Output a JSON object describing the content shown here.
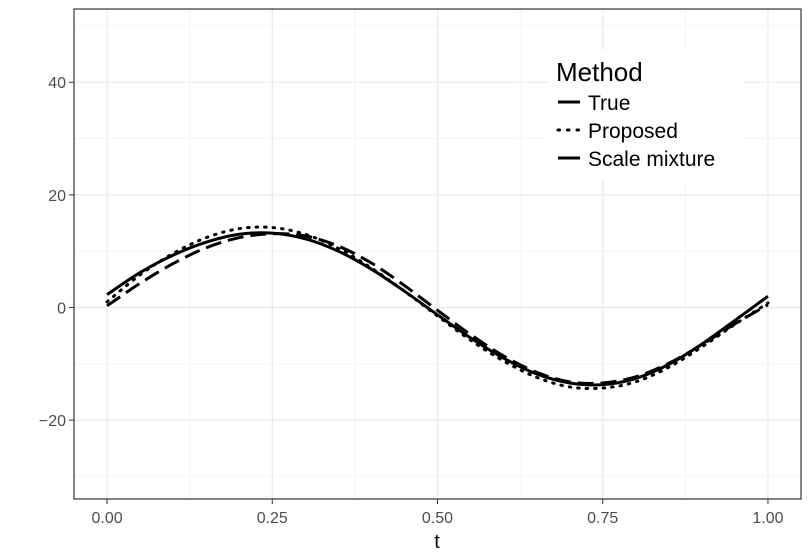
{
  "chart_data": {
    "type": "line",
    "title": "",
    "xlabel": "t",
    "ylabel": "",
    "xlim": [
      -0.05,
      1.05
    ],
    "ylim": [
      -34,
      53
    ],
    "x_ticks": [
      0,
      0.25,
      0.5,
      0.75,
      1
    ],
    "x_tick_labels": [
      "0.00",
      "0.25",
      "0.50",
      "0.75",
      "1.00"
    ],
    "y_ticks": [
      -20,
      0,
      20,
      40
    ],
    "y_tick_labels": [
      "−20",
      "0",
      "20",
      "40"
    ],
    "grid": true,
    "legend": {
      "title": "Method",
      "position": "top-right"
    },
    "x": [
      0,
      0.05,
      0.1,
      0.15,
      0.2,
      0.25,
      0.3,
      0.35,
      0.4,
      0.45,
      0.5,
      0.55,
      0.6,
      0.65,
      0.7,
      0.75,
      0.8,
      0.85,
      0.9,
      0.95,
      1
    ],
    "series": [
      {
        "name": "True",
        "style": "solid",
        "values": [
          2.3,
          6.2,
          9.3,
          11.6,
          13.0,
          13.2,
          12.2,
          10.0,
          6.8,
          2.9,
          -1.3,
          -5.4,
          -9.0,
          -11.8,
          -13.4,
          -13.7,
          -12.6,
          -10.1,
          -6.5,
          -2.3,
          2.0
        ]
      },
      {
        "name": "Proposed",
        "style": "dotted",
        "values": [
          1.0,
          5.8,
          9.6,
          12.4,
          14.0,
          14.2,
          13.0,
          10.5,
          7.0,
          2.9,
          -1.5,
          -5.8,
          -9.5,
          -12.4,
          -14.1,
          -14.3,
          -13.2,
          -10.6,
          -7.0,
          -3.0,
          0.8
        ]
      },
      {
        "name": "Scale mixture",
        "style": "dashed",
        "values": [
          0.3,
          4.3,
          7.8,
          10.6,
          12.4,
          13.1,
          12.7,
          10.9,
          7.9,
          3.9,
          -0.5,
          -4.8,
          -8.6,
          -11.5,
          -13.2,
          -13.4,
          -12.3,
          -9.9,
          -6.6,
          -2.9,
          0.5
        ]
      }
    ]
  }
}
